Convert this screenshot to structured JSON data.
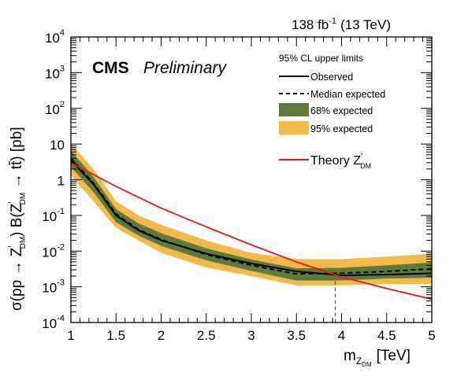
{
  "chart_data": {
    "type": "line",
    "xlabel_main": "m",
    "xlabel_sub": "Z",
    "xlabel_subsub": "DM",
    "xlabel_unit": "[TeV]",
    "ylabel": {
      "sigma": "σ(pp → Z",
      "prime": "′",
      "dm": "DM",
      "mid": ") B(Z",
      "end": " → tt̄) [pb]"
    },
    "xlim": [
      1,
      5
    ],
    "ylim_log10": [
      -4,
      4
    ],
    "log_y": true,
    "x_ticks": [
      1,
      1.5,
      2,
      2.5,
      3,
      3.5,
      4,
      4.5,
      5
    ],
    "x_tick_labels": [
      "1",
      "1.5",
      "2",
      "2.5",
      "3",
      "3.5",
      "4",
      "4.5",
      "5"
    ],
    "y_tick_exponents": [
      -4,
      -3,
      -2,
      -1,
      0,
      1,
      2,
      3,
      4
    ],
    "y_tick_labels": [
      {
        "base": "10",
        "exp": "-4"
      },
      {
        "base": "10",
        "exp": "-3"
      },
      {
        "base": "10",
        "exp": "-2"
      },
      {
        "base": "10",
        "exp": "-1"
      },
      {
        "base": "1",
        "exp": ""
      },
      {
        "base": "10",
        "exp": ""
      },
      {
        "base": "10",
        "exp": "2"
      },
      {
        "base": "10",
        "exp": "3"
      },
      {
        "base": "10",
        "exp": "4"
      }
    ],
    "mass": [
      1.0,
      1.25,
      1.5,
      1.75,
      2.0,
      2.5,
      3.0,
      3.5,
      4.0,
      4.5,
      5.0
    ],
    "band95_low": [
      1.3,
      0.25,
      0.045,
      0.02,
      0.009,
      0.0035,
      0.002,
      0.0011,
      0.0011,
      0.0012,
      0.0012
    ],
    "band95_high": [
      10.0,
      2.0,
      0.25,
      0.1,
      0.055,
      0.02,
      0.009,
      0.006,
      0.006,
      0.007,
      0.0085
    ],
    "band68_low": [
      2.3,
      0.45,
      0.065,
      0.027,
      0.014,
      0.0055,
      0.0028,
      0.0015,
      0.0015,
      0.0017,
      0.0018
    ],
    "band68_high": [
      6.5,
      1.2,
      0.15,
      0.06,
      0.032,
      0.012,
      0.0058,
      0.0033,
      0.0034,
      0.004,
      0.0048
    ],
    "expected": [
      4.0,
      0.8,
      0.11,
      0.04,
      0.021,
      0.008,
      0.004,
      0.0023,
      0.0024,
      0.0027,
      0.0032
    ],
    "observed": [
      3.5,
      0.75,
      0.1,
      0.038,
      0.02,
      0.0085,
      0.0045,
      0.0027,
      0.0021,
      0.0022,
      0.0024
    ],
    "theory_x": [
      1.0,
      1.5,
      2.0,
      2.5,
      3.0,
      3.5,
      4.0,
      4.5,
      5.0
    ],
    "theory_y": [
      3.0,
      0.65,
      0.16,
      0.048,
      0.015,
      0.005,
      0.0019,
      0.0009,
      0.00045
    ],
    "exclusion_mass": 3.93,
    "colors": {
      "band95": "#f3b94b",
      "band68": "#5e7a3c",
      "theory": "#e81818",
      "line": "#000000"
    },
    "luminosity": "138 fb",
    "luminosity_exp": "-1",
    "energy": "(13 TeV)",
    "cms_label": "CMS",
    "preliminary_label": "Preliminary",
    "legend": {
      "placement": "top-right",
      "header": "95% CL upper limits",
      "observed": "Observed",
      "median": "Median expected",
      "band68": "68% expected",
      "band95": "95% expected",
      "theory": "Theory Z",
      "theory_prime": "′",
      "theory_sub": "DM"
    }
  }
}
